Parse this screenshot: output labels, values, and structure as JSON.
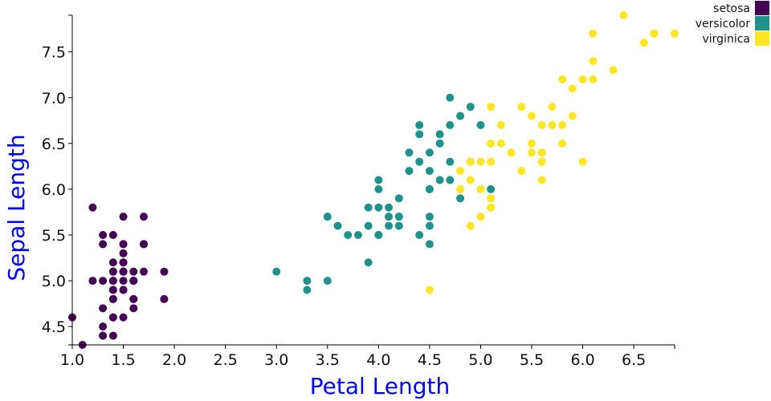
{
  "chart_data": {
    "type": "scatter",
    "title": "",
    "xlabel": "Petal Length",
    "ylabel": "Sepal Length",
    "xlim": [
      1.0,
      6.9
    ],
    "ylim": [
      4.3,
      7.9
    ],
    "x_ticks": [
      "1.0",
      "1.5",
      "2.0",
      "2.5",
      "3.0",
      "3.5",
      "4.0",
      "4.5",
      "5.0",
      "5.5",
      "6.0",
      "6.5"
    ],
    "y_ticks": [
      "4.5",
      "5.0",
      "5.5",
      "6.0",
      "6.5",
      "7.0",
      "7.5"
    ],
    "grid": false,
    "legend_position": "top-right",
    "axis_label_color": "#0000ff",
    "series": [
      {
        "name": "setosa",
        "color": "#440154",
        "points": [
          [
            1.4,
            5.1
          ],
          [
            1.4,
            4.9
          ],
          [
            1.3,
            4.7
          ],
          [
            1.5,
            4.6
          ],
          [
            1.4,
            5.0
          ],
          [
            1.7,
            5.4
          ],
          [
            1.4,
            4.6
          ],
          [
            1.5,
            5.0
          ],
          [
            1.4,
            4.4
          ],
          [
            1.5,
            4.9
          ],
          [
            1.5,
            5.4
          ],
          [
            1.6,
            4.8
          ],
          [
            1.4,
            4.8
          ],
          [
            1.1,
            4.3
          ],
          [
            1.2,
            5.8
          ],
          [
            1.5,
            5.7
          ],
          [
            1.3,
            5.4
          ],
          [
            1.4,
            5.1
          ],
          [
            1.7,
            5.7
          ],
          [
            1.5,
            5.1
          ],
          [
            1.7,
            5.4
          ],
          [
            1.5,
            5.1
          ],
          [
            1.0,
            4.6
          ],
          [
            1.7,
            5.1
          ],
          [
            1.9,
            4.8
          ],
          [
            1.6,
            5.0
          ],
          [
            1.6,
            5.0
          ],
          [
            1.5,
            5.2
          ],
          [
            1.4,
            5.2
          ],
          [
            1.6,
            4.7
          ],
          [
            1.6,
            4.8
          ],
          [
            1.5,
            5.4
          ],
          [
            1.5,
            5.2
          ],
          [
            1.4,
            5.5
          ],
          [
            1.5,
            4.9
          ],
          [
            1.2,
            5.0
          ],
          [
            1.3,
            5.5
          ],
          [
            1.4,
            4.9
          ],
          [
            1.3,
            4.4
          ],
          [
            1.5,
            5.1
          ],
          [
            1.3,
            5.0
          ],
          [
            1.3,
            4.5
          ],
          [
            1.3,
            4.4
          ],
          [
            1.6,
            5.0
          ],
          [
            1.9,
            5.1
          ],
          [
            1.4,
            4.8
          ],
          [
            1.6,
            5.1
          ],
          [
            1.4,
            4.6
          ],
          [
            1.5,
            5.3
          ],
          [
            1.4,
            5.0
          ]
        ]
      },
      {
        "name": "versicolor",
        "color": "#21918c",
        "points": [
          [
            4.7,
            7.0
          ],
          [
            4.5,
            6.4
          ],
          [
            4.9,
            6.9
          ],
          [
            4.0,
            5.5
          ],
          [
            4.6,
            6.5
          ],
          [
            4.5,
            5.7
          ],
          [
            4.7,
            6.3
          ],
          [
            3.3,
            4.9
          ],
          [
            4.6,
            6.6
          ],
          [
            3.9,
            5.2
          ],
          [
            3.5,
            5.0
          ],
          [
            4.2,
            5.9
          ],
          [
            4.0,
            6.0
          ],
          [
            4.7,
            6.1
          ],
          [
            3.6,
            5.6
          ],
          [
            4.4,
            6.7
          ],
          [
            4.5,
            5.6
          ],
          [
            4.1,
            5.8
          ],
          [
            4.5,
            6.2
          ],
          [
            3.9,
            5.6
          ],
          [
            4.8,
            5.9
          ],
          [
            4.0,
            6.1
          ],
          [
            4.9,
            6.3
          ],
          [
            4.7,
            6.1
          ],
          [
            4.3,
            6.4
          ],
          [
            4.4,
            6.6
          ],
          [
            4.8,
            6.8
          ],
          [
            5.0,
            6.7
          ],
          [
            4.5,
            6.0
          ],
          [
            3.5,
            5.7
          ],
          [
            3.8,
            5.5
          ],
          [
            3.7,
            5.5
          ],
          [
            3.9,
            5.8
          ],
          [
            5.1,
            6.0
          ],
          [
            4.5,
            5.4
          ],
          [
            4.5,
            6.0
          ],
          [
            4.7,
            6.7
          ],
          [
            4.4,
            6.3
          ],
          [
            4.1,
            5.6
          ],
          [
            4.0,
            5.5
          ],
          [
            4.4,
            5.5
          ],
          [
            4.6,
            6.1
          ],
          [
            4.0,
            5.8
          ],
          [
            3.3,
            5.0
          ],
          [
            4.2,
            5.6
          ],
          [
            4.2,
            5.7
          ],
          [
            4.2,
            5.7
          ],
          [
            4.3,
            6.2
          ],
          [
            3.0,
            5.1
          ],
          [
            4.1,
            5.7
          ]
        ]
      },
      {
        "name": "virginica",
        "color": "#fde725",
        "points": [
          [
            6.0,
            6.3
          ],
          [
            5.1,
            5.8
          ],
          [
            5.9,
            7.1
          ],
          [
            5.6,
            6.3
          ],
          [
            5.8,
            6.5
          ],
          [
            6.6,
            7.6
          ],
          [
            4.5,
            4.9
          ],
          [
            6.3,
            7.3
          ],
          [
            5.8,
            6.7
          ],
          [
            6.1,
            7.2
          ],
          [
            5.1,
            6.5
          ],
          [
            5.3,
            6.4
          ],
          [
            5.5,
            6.8
          ],
          [
            5.0,
            5.7
          ],
          [
            5.1,
            5.8
          ],
          [
            5.3,
            6.4
          ],
          [
            5.5,
            6.5
          ],
          [
            6.7,
            7.7
          ],
          [
            6.9,
            7.7
          ],
          [
            5.0,
            6.0
          ],
          [
            5.7,
            6.9
          ],
          [
            4.9,
            5.6
          ],
          [
            6.7,
            7.7
          ],
          [
            4.9,
            6.3
          ],
          [
            5.7,
            6.7
          ],
          [
            6.0,
            7.2
          ],
          [
            4.8,
            6.2
          ],
          [
            4.9,
            6.1
          ],
          [
            5.6,
            6.4
          ],
          [
            5.8,
            7.2
          ],
          [
            6.1,
            7.4
          ],
          [
            6.4,
            7.9
          ],
          [
            5.6,
            6.4
          ],
          [
            5.1,
            6.3
          ],
          [
            5.6,
            6.1
          ],
          [
            6.1,
            7.7
          ],
          [
            5.6,
            6.3
          ],
          [
            5.5,
            6.4
          ],
          [
            4.8,
            6.0
          ],
          [
            5.4,
            6.9
          ],
          [
            5.6,
            6.7
          ],
          [
            5.1,
            6.9
          ],
          [
            5.1,
            5.8
          ],
          [
            5.9,
            6.8
          ],
          [
            5.7,
            6.7
          ],
          [
            5.2,
            6.7
          ],
          [
            5.0,
            6.3
          ],
          [
            5.2,
            6.5
          ],
          [
            5.4,
            6.2
          ],
          [
            5.1,
            5.9
          ]
        ]
      }
    ]
  }
}
